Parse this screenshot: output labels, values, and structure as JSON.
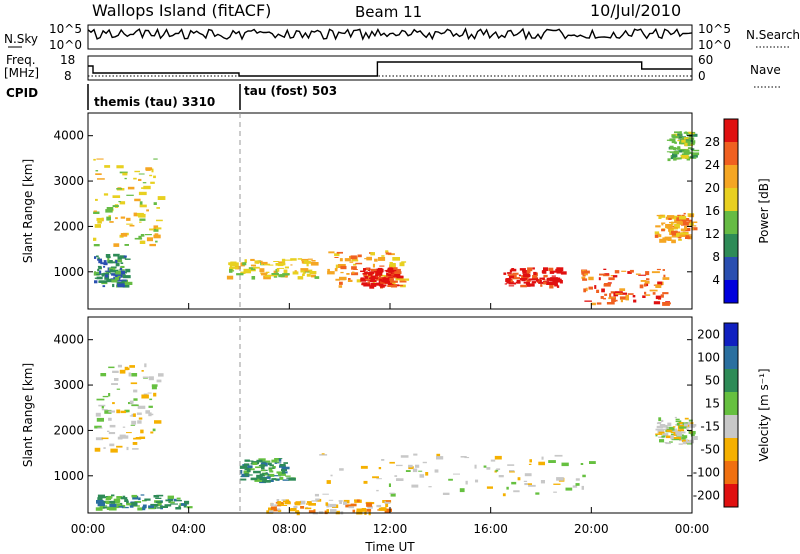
{
  "header": {
    "site": "Wallops Island (fitACF)",
    "beam": "Beam 11",
    "date": "10/Jul/2010"
  },
  "status_panels": {
    "nsky_label": "N.Sky",
    "nsky_ticks": [
      "10^5",
      "10^0"
    ],
    "nsearch_label": "N.Search",
    "nsearch_ticks": [
      "10^5",
      "10^0"
    ],
    "freq_label": "Freq.",
    "freq_unit": "[MHz]",
    "freq_ticks": [
      "18",
      "8"
    ],
    "nave_label": "Nave",
    "nave_ticks": [
      "60",
      "0"
    ],
    "cpid_label": "CPID",
    "cpid_segments": [
      {
        "label": "themis (tau) 3310",
        "start_hour": 0
      },
      {
        "label": "tau (fost) 503",
        "start_hour": 6
      }
    ]
  },
  "chart_data": [
    {
      "type": "heatmap",
      "ylabel": "Slant Range [km]",
      "yticks": [
        1000,
        2000,
        3000,
        4000
      ],
      "ylim": [
        180,
        4500
      ],
      "xlim": [
        0,
        24
      ],
      "colorbar": {
        "label": "Power [dB]",
        "ticks": [
          4,
          8,
          12,
          16,
          20,
          24,
          28
        ],
        "colors": [
          "#0000dd",
          "#2a4fb0",
          "#2e8b57",
          "#66bb44",
          "#e8d020",
          "#f5a623",
          "#f06020",
          "#e01010"
        ]
      },
      "echo_regions": [
        {
          "t0": 0.2,
          "t1": 2.8,
          "r0": 1600,
          "r1": 3500,
          "level": 16
        },
        {
          "t0": 0.2,
          "t1": 1.5,
          "r0": 700,
          "r1": 1400,
          "level": 8
        },
        {
          "t0": 5.5,
          "t1": 9.0,
          "r0": 900,
          "r1": 1300,
          "level": 16
        },
        {
          "t0": 9.5,
          "t1": 12.5,
          "r0": 700,
          "r1": 1500,
          "level": 20
        },
        {
          "t0": 10.8,
          "t1": 12.3,
          "r0": 700,
          "r1": 1100,
          "level": 28
        },
        {
          "t0": 16.5,
          "t1": 18.8,
          "r0": 700,
          "r1": 1100,
          "level": 28
        },
        {
          "t0": 19.5,
          "t1": 23.0,
          "r0": 300,
          "r1": 1100,
          "level": 24
        },
        {
          "t0": 22.5,
          "t1": 24.0,
          "r0": 1700,
          "r1": 2300,
          "level": 20
        },
        {
          "t0": 23.0,
          "t1": 24.0,
          "r0": 3500,
          "r1": 4100,
          "level": 12
        }
      ]
    },
    {
      "type": "heatmap",
      "ylabel": "Slant Range [km]",
      "yticks": [
        1000,
        2000,
        3000,
        4000
      ],
      "ylim": [
        180,
        4500
      ],
      "xlim": [
        0,
        24
      ],
      "xlabel": "Time UT",
      "xticks": [
        "00:00",
        "04:00",
        "08:00",
        "12:00",
        "16:00",
        "20:00",
        "00:00"
      ],
      "colorbar": {
        "label": "Velocity [m s⁻¹]",
        "ticks": [
          200,
          100,
          50,
          15,
          -15,
          -50,
          -100,
          -200
        ],
        "colors": [
          "#1020c0",
          "#2a6f9f",
          "#2e8b57",
          "#66c040",
          "#c8c8c8",
          "#f5b000",
          "#f07010",
          "#e01010"
        ]
      },
      "echo_regions": [
        {
          "t0": 0.2,
          "t1": 2.8,
          "r0": 1600,
          "r1": 3500,
          "level": 0
        },
        {
          "t0": 6.0,
          "t1": 8.0,
          "r0": 900,
          "r1": 1400,
          "level": 50
        },
        {
          "t0": 0.2,
          "t1": 4.0,
          "r0": 300,
          "r1": 600,
          "level": 50
        },
        {
          "t0": 7.0,
          "t1": 12.0,
          "r0": 200,
          "r1": 500,
          "level": -50
        },
        {
          "t0": 9.0,
          "t1": 20.0,
          "r0": 600,
          "r1": 1500,
          "level": 0
        },
        {
          "t0": 22.5,
          "t1": 24.0,
          "r0": 1700,
          "r1": 2300,
          "level": 0
        }
      ]
    }
  ]
}
